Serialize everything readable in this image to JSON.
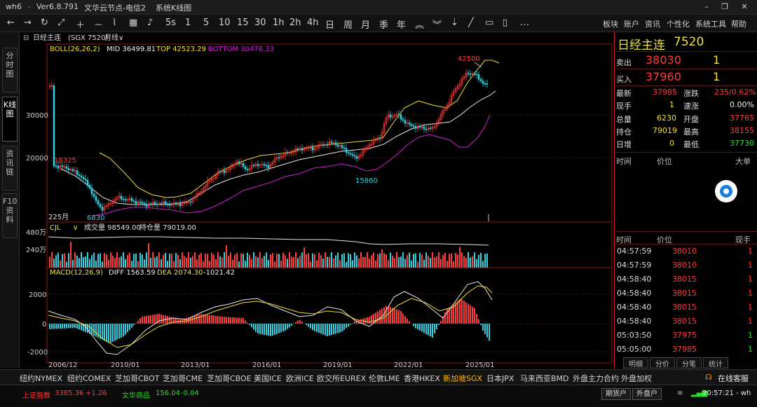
{
  "app": {
    "name": "wh6",
    "version": "Ver6.8.791",
    "node": "文华云节点-电信2",
    "template": "系统K线图"
  },
  "window": {
    "minimize": "–",
    "restore": "❐",
    "close": "✕"
  },
  "toolbar": {
    "periods": [
      "5s",
      "1",
      "5",
      "10",
      "15",
      "30",
      "1h",
      "2h",
      "4h",
      "日",
      "周",
      "月",
      "季",
      "年"
    ],
    "right_items": [
      "板块",
      "账户",
      "资讯",
      "个性化",
      "系统工具",
      "帮助"
    ]
  },
  "left_tabs": [
    {
      "label": "分时图"
    },
    {
      "label": "K线图"
    },
    {
      "label": "资讯链"
    },
    {
      "label": "F10资料"
    }
  ],
  "chart": {
    "header": {
      "name": "日经主连",
      "code": "(SGX 7520)",
      "period": "月线∨"
    },
    "boll": {
      "label": "BOLL(26,26,2)",
      "mid": "MID 36499.81",
      "top": "TOP 42523.29",
      "bottom": "BOTTOM 30476.33"
    },
    "price_ticks": [
      "30000",
      "20000"
    ],
    "annotations": {
      "high": "42500",
      "a": "18325",
      "b": "15860",
      "low": "6830"
    },
    "count_label": "225月",
    "vol": {
      "label": "CJL",
      "vol": "成交量 98549.00",
      "oi": "持仓量 79019.00",
      "ticks": [
        "480万",
        "240万"
      ]
    },
    "macd": {
      "label": "MACD(12,26,9)",
      "diff": "DIFF 1563.59",
      "dea": "DEA 2074.30",
      "macd": "-1021.42",
      "ticks": [
        "2000",
        "0",
        "-2000"
      ]
    },
    "x_labels": [
      "2006/12",
      "2010/01",
      "2013/01",
      "2016/01",
      "2019/01",
      "2022/01",
      "2025/01"
    ]
  },
  "quote": {
    "title": "日经主连",
    "code": "7520",
    "ask": {
      "label": "卖出",
      "price": "38030",
      "qty": "1"
    },
    "bid": {
      "label": "买入",
      "price": "37960",
      "qty": "1"
    },
    "stats": [
      {
        "l1": "最新",
        "v1": "37985",
        "l2": "涨跌",
        "v2": "235/0.62%"
      },
      {
        "l1": "现手",
        "v1": "1",
        "l2": "速涨",
        "v2": "0.00%"
      },
      {
        "l1": "总量",
        "v1": "6230",
        "l2": "开盘",
        "v2": "37765"
      },
      {
        "l1": "持仓",
        "v1": "79019",
        "l2": "最高",
        "v2": "38155"
      },
      {
        "l1": "日增",
        "v1": "0",
        "l2": "最低",
        "v2": "37730"
      }
    ],
    "tick_header": {
      "time": "时间",
      "price": "价位",
      "lot": "大单"
    },
    "trade_header": {
      "time": "时间",
      "price": "价位",
      "lot": "现手"
    },
    "trades": [
      {
        "time": "04:57:59",
        "price": "38010",
        "qty": "1"
      },
      {
        "time": "04:57:59",
        "price": "38010",
        "qty": "1"
      },
      {
        "time": "04:58:40",
        "price": "38015",
        "qty": "1"
      },
      {
        "time": "04:58:40",
        "price": "38015",
        "qty": "1"
      },
      {
        "time": "04:58:40",
        "price": "38015",
        "qty": "1"
      },
      {
        "time": "04:58:40",
        "price": "38015",
        "qty": "1"
      },
      {
        "time": "05:03:50",
        "price": "37975",
        "qty": "1"
      },
      {
        "time": "05:05:00",
        "price": "37985",
        "qty": "1"
      }
    ],
    "bottom_tabs": [
      "明细",
      "分价",
      "分笔",
      "统计"
    ]
  },
  "exchanges": [
    "纽约NYMEX",
    "纽约COMEX",
    "芝加哥CBOT",
    "芝加哥CME",
    "芝加哥CBOE",
    "美国ICE",
    "欧洲ICE",
    "欧交所EUREX",
    "伦敦LME",
    "香港HKEX",
    "新加坡SGX",
    "日本JPX",
    "马来西亚BMD",
    "外盘主力合约",
    "外盘加权"
  ],
  "active_exchange": "新加坡SGX",
  "online_service": "在线客服",
  "status": {
    "idx1_name": "上证指数",
    "idx1_val": "3385.36",
    "idx1_chg": "+1.26",
    "idx2_name": "文华商品",
    "idx2_val": "156.04",
    "idx2_chg": "-0.04",
    "btn1": "期货户",
    "btn2": "外盘户",
    "clock": "20:57:21 - wh"
  },
  "colors": {
    "up": "#ff3b3b",
    "down": "#31d0e0",
    "accent": "#f0e03a",
    "boll_lower": "#d020d0"
  }
}
